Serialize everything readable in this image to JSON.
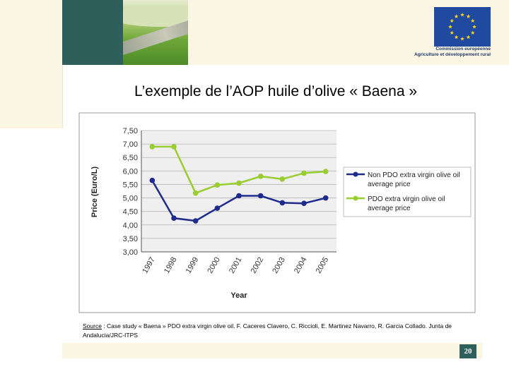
{
  "header": {
    "eu_caption_line1": "Commission européenne",
    "eu_caption_line2": "Agriculture et développement rural"
  },
  "slide": {
    "title": "L’exemple de l’AOP huile d’olive « Baena »",
    "source_label": "Source",
    "source_text": " : Case study « Baena » PDO extra virgin olive oil. F. Caceres Clavero, C. Riccioli, E. Martinez Navarro, R. Garcia Collado. Junta de Andalucia/JRC-ITPS",
    "page_number": "20"
  },
  "colors": {
    "accent_dark_green": "#2f5f5a",
    "band_cream": "#fbf6e4",
    "eu_blue": "#1f4aa0",
    "eu_star": "#ffd617",
    "series_non_pdo": "#1f2c8c",
    "series_pdo": "#9acd32"
  },
  "chart_data": {
    "type": "line",
    "x": [
      "1997",
      "1998",
      "1999",
      "2000",
      "2001",
      "2002",
      "2003",
      "2004",
      "2005"
    ],
    "series": [
      {
        "name": "Non PDO extra virgin olive oil average price",
        "legend_line1": "Non PDO extra virgin olive oil",
        "legend_line2": "average price",
        "color": "#1f2c8c",
        "values": [
          5.65,
          4.25,
          4.15,
          4.62,
          5.08,
          5.08,
          4.82,
          4.8,
          5.0
        ]
      },
      {
        "name": "PDO extra virgin olive oil average price",
        "legend_line1": "PDO extra virgin olive oil",
        "legend_line2": "average price",
        "color": "#9acd32",
        "values": [
          6.9,
          6.9,
          5.18,
          5.48,
          5.55,
          5.8,
          5.7,
          5.92,
          5.98
        ]
      }
    ],
    "xlabel": "Year",
    "ylabel": "Price (Euro/L)",
    "ylim": [
      3.0,
      7.5
    ],
    "yticks": [
      "3,00",
      "3,50",
      "4,00",
      "4,50",
      "5,00",
      "5,50",
      "6,00",
      "6,50",
      "7,00",
      "7,50"
    ],
    "grid": true,
    "legend_position": "right"
  }
}
